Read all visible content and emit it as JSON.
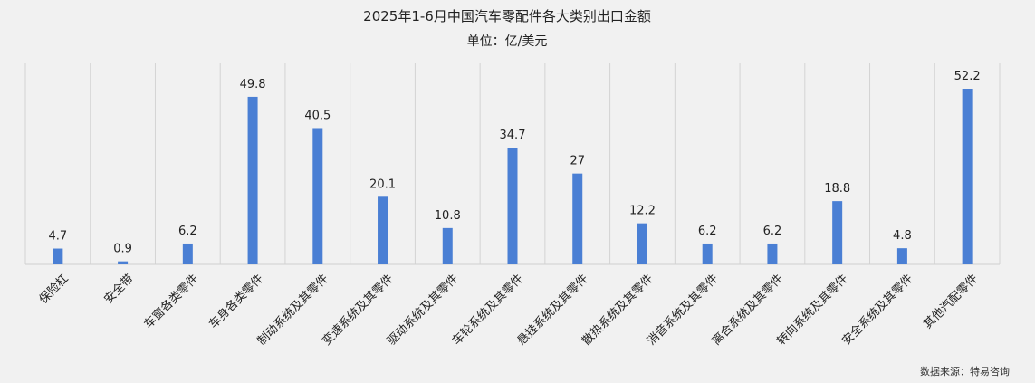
{
  "chart_data": {
    "type": "bar",
    "title": "2025年1-6月中国汽车零配件各大类别出口金额",
    "subtitle": "单位：亿/美元",
    "categories": [
      "保险杠",
      "安全带",
      "车窗各类零件",
      "车身各类零件",
      "制动系统及其零件",
      "变速系统及其零件",
      "驱动系统及其零件",
      "车轮系统及其零件",
      "悬挂系统及其零件",
      "散热系统及其零件",
      "消音系统及其零件",
      "离合系统及其零件",
      "转向系统及其零件",
      "安全系统及其零件",
      "其他汽配零件"
    ],
    "values": [
      4.7,
      0.9,
      6.2,
      49.8,
      40.5,
      20.1,
      10.8,
      34.7,
      27,
      12.2,
      6.2,
      6.2,
      18.8,
      4.8,
      52.2
    ],
    "value_labels": [
      "4.7",
      "0.9",
      "6.2",
      "49.8",
      "40.5",
      "20.1",
      "10.8",
      "34.7",
      "27",
      "12.2",
      "6.2",
      "6.2",
      "18.8",
      "4.8",
      "52.2"
    ],
    "ylim": [
      0,
      57
    ],
    "grid": true,
    "bar_color": "#4a7fd4",
    "source": "数据来源：特易咨询"
  }
}
